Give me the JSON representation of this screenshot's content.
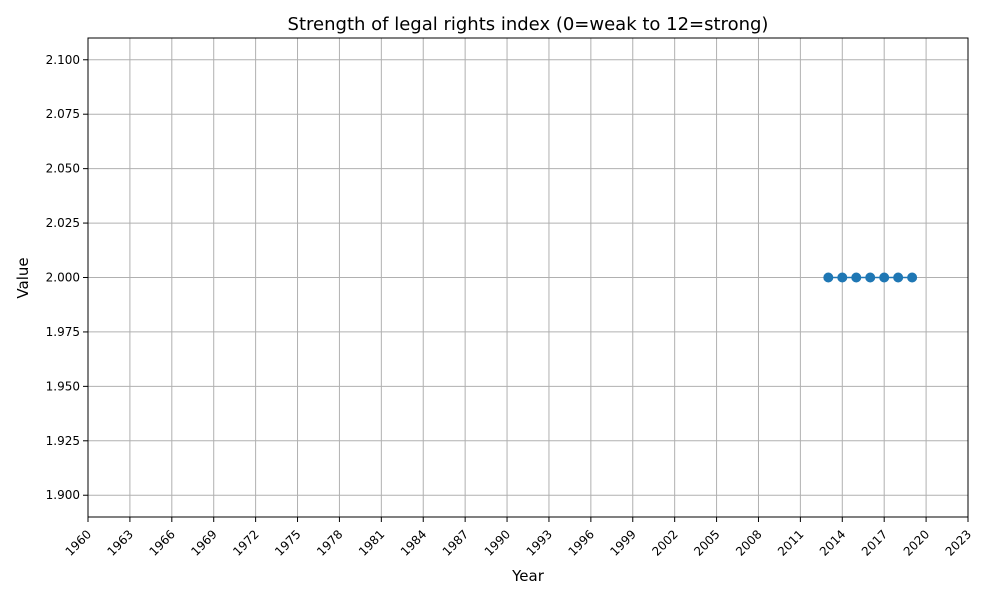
{
  "chart_data": {
    "type": "line",
    "title": "Strength of legal rights index (0=weak to 12=strong)",
    "xlabel": "Year",
    "ylabel": "Value",
    "xlim": [
      1960,
      2023
    ],
    "ylim": [
      1.89,
      2.11
    ],
    "grid": true,
    "x_ticks": [
      1960,
      1963,
      1966,
      1969,
      1972,
      1975,
      1978,
      1981,
      1984,
      1987,
      1990,
      1993,
      1996,
      1999,
      2002,
      2005,
      2008,
      2011,
      2014,
      2017,
      2020,
      2023
    ],
    "y_ticks": [
      1.9,
      1.925,
      1.95,
      1.975,
      2.0,
      2.025,
      2.05,
      2.075,
      2.1
    ],
    "y_tick_labels": [
      "1.900",
      "1.925",
      "1.950",
      "1.975",
      "2.000",
      "2.025",
      "2.050",
      "2.075",
      "2.100"
    ],
    "series": [
      {
        "x": [
          2013,
          2014,
          2015,
          2016,
          2017,
          2018,
          2019
        ],
        "y": [
          2,
          2,
          2,
          2,
          2,
          2,
          2
        ],
        "color": "#1f77b4",
        "marker": "circle"
      }
    ]
  }
}
